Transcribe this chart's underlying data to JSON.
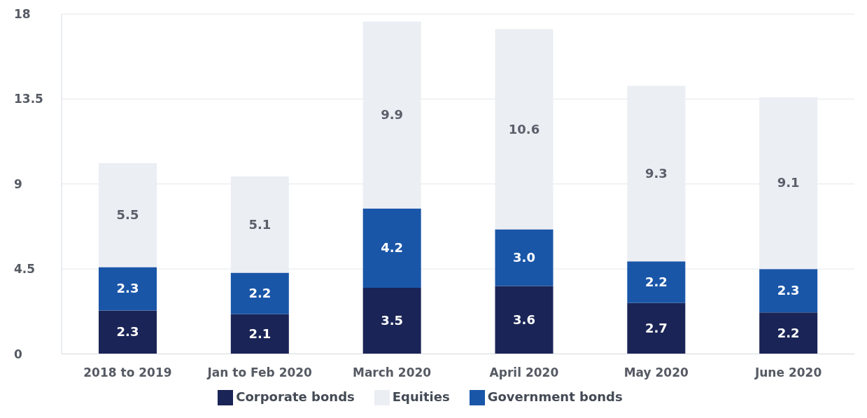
{
  "chart_data": {
    "type": "bar",
    "stacked": true,
    "categories": [
      "2018 to 2019",
      "Jan to Feb 2020",
      "March 2020",
      "April 2020",
      "May 2020",
      "June 2020"
    ],
    "series": [
      {
        "name": "Corporate bonds",
        "color": "#1a2456",
        "values": [
          2.3,
          2.1,
          3.5,
          3.6,
          2.7,
          2.2
        ],
        "value_labels": [
          "2.3",
          "2.1",
          "3.5",
          "3.6",
          "2.7",
          "2.2"
        ]
      },
      {
        "name": "Government bonds",
        "color": "#1a56a8",
        "values": [
          2.3,
          2.2,
          4.2,
          3.0,
          2.2,
          2.3
        ],
        "value_labels": [
          "2.3",
          "2.2",
          "4.2",
          "3.0",
          "2.2",
          "2.3"
        ]
      },
      {
        "name": "Equities",
        "color": "#ebeef3",
        "values": [
          5.5,
          5.1,
          9.9,
          10.6,
          9.3,
          9.1
        ],
        "value_labels": [
          "5.5",
          "5.1",
          "9.9",
          "10.6",
          "9.3",
          "9.1"
        ]
      }
    ],
    "ylim": [
      0,
      18
    ],
    "yticks": [
      0,
      4.5,
      9,
      13.5,
      18
    ],
    "grid": "y",
    "legend": "bottom"
  }
}
